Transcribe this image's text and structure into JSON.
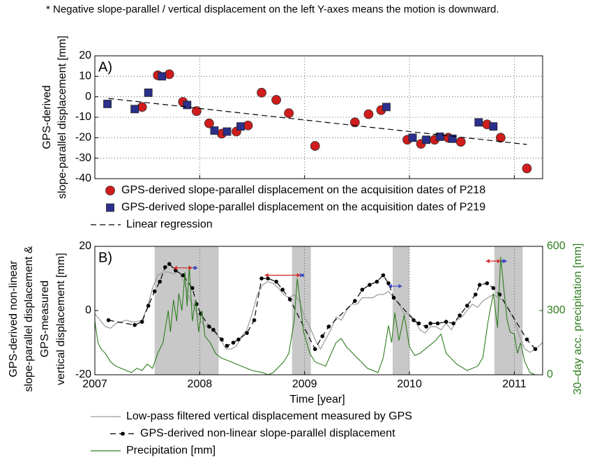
{
  "note": "* Negative slope-parallel / vertical displacement on the left Y-axes means the motion is downward.",
  "chart_data": [
    {
      "type": "scatter",
      "panel_label": "A)",
      "ylabel": [
        "GPS-derived",
        "slope-parallel displacement [mm]"
      ],
      "xlim": [
        2007,
        2011.27
      ],
      "xticks": [
        2007,
        2008,
        2009,
        2010,
        2011
      ],
      "ylim": [
        -40,
        20
      ],
      "yticks": [
        20,
        10,
        0,
        -10,
        -20,
        -30,
        -40
      ],
      "grid": true,
      "series": [
        {
          "name": "GPS-derived slope-parallel displacement on the acquisition dates of P218",
          "color": "#d01c1c",
          "marker": "circle",
          "x": [
            2007.45,
            2007.6,
            2007.71,
            2007.84,
            2007.97,
            2008.09,
            2008.21,
            2008.35,
            2008.46,
            2008.59,
            2008.73,
            2008.85,
            2009.1,
            2009.48,
            2009.61,
            2009.73,
            2009.98,
            2010.11,
            2010.24,
            2010.37,
            2010.49,
            2010.74,
            2010.87,
            2011.12
          ],
          "values": [
            -5,
            10.5,
            11,
            -2.5,
            -7,
            -13,
            -18,
            -17,
            -14,
            2,
            -1.5,
            -8,
            -24,
            -12.5,
            -8.5,
            -6.5,
            -21,
            -23,
            -21,
            -20,
            -22,
            -13.5,
            -20,
            -35
          ]
        },
        {
          "name": "GPS-derived slope-parallel displacement on the acquisition dates of P219",
          "color": "#2b2f8c",
          "marker": "square",
          "x": [
            2007.12,
            2007.38,
            2007.51,
            2007.64,
            2007.88,
            2008.14,
            2008.26,
            2008.39,
            2009.78,
            2010.03,
            2010.16,
            2010.29,
            2010.41,
            2010.66,
            2010.8
          ],
          "values": [
            -3.5,
            -6,
            2,
            10,
            -4,
            -16.5,
            -17,
            -14.5,
            -5,
            -20,
            -21,
            -19.5,
            -20.5,
            -12.5,
            -14.5
          ]
        },
        {
          "name": "Linear regression",
          "color": "#000000",
          "line": "dashed",
          "x": [
            2007.13,
            2011.12
          ],
          "values": [
            -0.8,
            -23.3
          ]
        }
      ]
    },
    {
      "type": "line",
      "panel_label": "B)",
      "ylabel": [
        "GPS-derived non-linear",
        "slope-parallel displacement &",
        "GPS-measured",
        "vertical displacement [mm]"
      ],
      "xlabel": "Time [year]",
      "y2label": "30–day acc. precipitation [mm]",
      "y2color": "#2e7d1e",
      "xlim": [
        2007,
        2011.27
      ],
      "xticks": [
        2007,
        2008,
        2009,
        2010,
        2011
      ],
      "ylim": [
        -20,
        20
      ],
      "yticks": [
        20,
        0,
        -20
      ],
      "y2lim": [
        0,
        600
      ],
      "y2ticks": [
        600,
        300,
        0
      ],
      "grid": true,
      "shaded_periods": [
        [
          2007.57,
          2008.18
        ],
        [
          2008.88,
          2009.06
        ],
        [
          2009.84,
          2010.0
        ],
        [
          2010.81,
          2011.08
        ]
      ],
      "shade_color": "#c8c8c8",
      "arrows": [
        {
          "x": [
            2007.75,
            2007.93
          ],
          "y": 13.3,
          "color": "#d62728"
        },
        {
          "x": [
            2007.93,
            2007.98
          ],
          "y": 13.3,
          "color": "#3b4cc0"
        },
        {
          "x": [
            2008.62,
            2008.96
          ],
          "y": 11,
          "color": "#d62728"
        },
        {
          "x": [
            2008.96,
            2008.99
          ],
          "y": 11,
          "color": "#3b4cc0"
        },
        {
          "x": [
            2009.8,
            2009.93
          ],
          "y": 7.6,
          "color": "#3b4cc0"
        },
        {
          "x": [
            2010.73,
            2010.87
          ],
          "y": 15.4,
          "color": "#d62728"
        },
        {
          "x": [
            2010.87,
            2010.93
          ],
          "y": 15.4,
          "color": "#3b4cc0"
        }
      ],
      "series": [
        {
          "name": "Low-pass filtered vertical displacement measured by GPS",
          "color": "#9a9a9a",
          "line": "solid",
          "x": [
            2007,
            2007.05,
            2007.1,
            2007.15,
            2007.2,
            2007.25,
            2007.3,
            2007.35,
            2007.4,
            2007.45,
            2007.5,
            2007.55,
            2007.6,
            2007.65,
            2007.7,
            2007.75,
            2007.8,
            2007.85,
            2007.9,
            2007.95,
            2008,
            2008.05,
            2008.1,
            2008.15,
            2008.2,
            2008.25,
            2008.3,
            2008.35,
            2008.4,
            2008.45,
            2008.5,
            2008.55,
            2008.6,
            2008.65,
            2008.7,
            2008.75,
            2008.8,
            2008.85,
            2008.9,
            2008.95,
            2009,
            2009.05,
            2009.1,
            2009.15,
            2009.2,
            2009.25,
            2009.3,
            2009.35,
            2009.4,
            2009.45,
            2009.5,
            2009.55,
            2009.6,
            2009.65,
            2009.7,
            2009.75,
            2009.8,
            2009.85,
            2009.9,
            2009.95,
            2010,
            2010.05,
            2010.1,
            2010.15,
            2010.2,
            2010.25,
            2010.3,
            2010.35,
            2010.4,
            2010.45,
            2010.5,
            2010.55,
            2010.6,
            2010.65,
            2010.7,
            2010.75,
            2010.8,
            2010.85,
            2010.9,
            2010.95,
            2011,
            2011.05,
            2011.1,
            2011.15,
            2011.2,
            2011.27
          ],
          "values": [
            -1,
            -3,
            -5,
            -5.5,
            -4,
            -3.5,
            -3,
            -3.5,
            -3.5,
            -3,
            1,
            7,
            11,
            12,
            12,
            11.5,
            12,
            9,
            4,
            1,
            -3,
            -5,
            -5,
            -7,
            -9,
            -12,
            -12,
            -11,
            -8,
            -6,
            -1,
            5,
            8,
            9,
            8.5,
            7,
            5,
            4,
            5,
            3,
            -2,
            -5,
            -9,
            -12,
            -9,
            -6,
            -2,
            -3,
            0,
            2,
            2,
            4,
            4,
            4,
            5,
            5,
            6,
            4,
            2,
            -1,
            -1,
            -3,
            -6,
            -7,
            -5,
            -5,
            -6,
            -4,
            -6,
            -3,
            -2,
            0,
            2,
            1,
            3,
            4,
            5,
            4,
            3,
            0,
            -3,
            -8,
            -12,
            -13,
            -12,
            -10
          ]
        },
        {
          "name": "GPS-derived non-linear slope-parallel displacement",
          "color": "#000000",
          "line": "dashed",
          "marker": "dot",
          "x": [
            2007.13,
            2007.38,
            2007.45,
            2007.51,
            2007.57,
            2007.62,
            2007.67,
            2007.71,
            2007.77,
            2007.84,
            2007.93,
            2007.97,
            2008.01,
            2008.09,
            2008.13,
            2008.21,
            2008.26,
            2008.32,
            2008.37,
            2008.45,
            2008.52,
            2008.59,
            2008.65,
            2008.73,
            2008.79,
            2008.86,
            2009.1,
            2009.17,
            2009.23,
            2009.48,
            2009.55,
            2009.62,
            2009.69,
            2009.75,
            2009.8,
            2009.85,
            2010.04,
            2010.09,
            2010.16,
            2010.2,
            2010.27,
            2010.35,
            2010.42,
            2010.48,
            2010.55,
            2010.63,
            2010.67,
            2010.74,
            2010.8,
            2010.86,
            2011.12,
            2011.2
          ],
          "values": [
            -3,
            -4.5,
            -3.5,
            1.5,
            6,
            9,
            13.5,
            14.5,
            12.5,
            11,
            7,
            2,
            -1,
            -5,
            -6,
            -9,
            -11,
            -10,
            -9,
            -7,
            -3,
            10,
            10,
            9,
            6.5,
            3.5,
            -12,
            -8,
            -5,
            3,
            6.5,
            8,
            9,
            11,
            8.5,
            4,
            -3,
            -4,
            -5,
            -4,
            -4,
            -3.5,
            -4,
            -1.5,
            1.5,
            5,
            8,
            8.5,
            7,
            5,
            -9,
            -12
          ]
        },
        {
          "name": "Precipitation [mm]",
          "color": "#2e7d1e",
          "line": "solid",
          "axis": "y2",
          "x": [
            2007,
            2007.03,
            2007.06,
            2007.1,
            2007.15,
            2007.2,
            2007.25,
            2007.3,
            2007.35,
            2007.4,
            2007.45,
            2007.5,
            2007.55,
            2007.6,
            2007.65,
            2007.7,
            2007.72,
            2007.75,
            2007.78,
            2007.8,
            2007.83,
            2007.86,
            2007.88,
            2007.9,
            2007.93,
            2007.96,
            2007.99,
            2008.02,
            2008.05,
            2008.1,
            2008.15,
            2008.2,
            2008.3,
            2008.4,
            2008.5,
            2008.6,
            2008.65,
            2008.7,
            2008.8,
            2008.85,
            2008.9,
            2008.93,
            2008.96,
            2008.99,
            2009.05,
            2009.1,
            2009.2,
            2009.3,
            2009.35,
            2009.4,
            2009.5,
            2009.6,
            2009.7,
            2009.75,
            2009.8,
            2009.83,
            2009.86,
            2009.9,
            2009.95,
            2010,
            2010.05,
            2010.1,
            2010.2,
            2010.25,
            2010.3,
            2010.35,
            2010.45,
            2010.55,
            2010.65,
            2010.7,
            2010.75,
            2010.8,
            2010.84,
            2010.87,
            2010.9,
            2010.93,
            2010.96,
            2011,
            2011.03,
            2011.06,
            2011.1,
            2011.15,
            2011.2
          ],
          "values": [
            250,
            150,
            120,
            100,
            60,
            40,
            30,
            20,
            10,
            30,
            20,
            50,
            30,
            100,
            150,
            300,
            200,
            350,
            250,
            380,
            300,
            480,
            320,
            510,
            250,
            350,
            200,
            300,
            180,
            150,
            100,
            80,
            60,
            40,
            20,
            10,
            0,
            10,
            60,
            100,
            250,
            450,
            330,
            200,
            100,
            60,
            40,
            150,
            170,
            130,
            80,
            30,
            10,
            80,
            230,
            150,
            290,
            160,
            280,
            130,
            90,
            100,
            140,
            160,
            190,
            100,
            50,
            20,
            40,
            80,
            250,
            380,
            220,
            550,
            400,
            260,
            200,
            190,
            100,
            150,
            60,
            10,
            0
          ]
        }
      ]
    }
  ]
}
